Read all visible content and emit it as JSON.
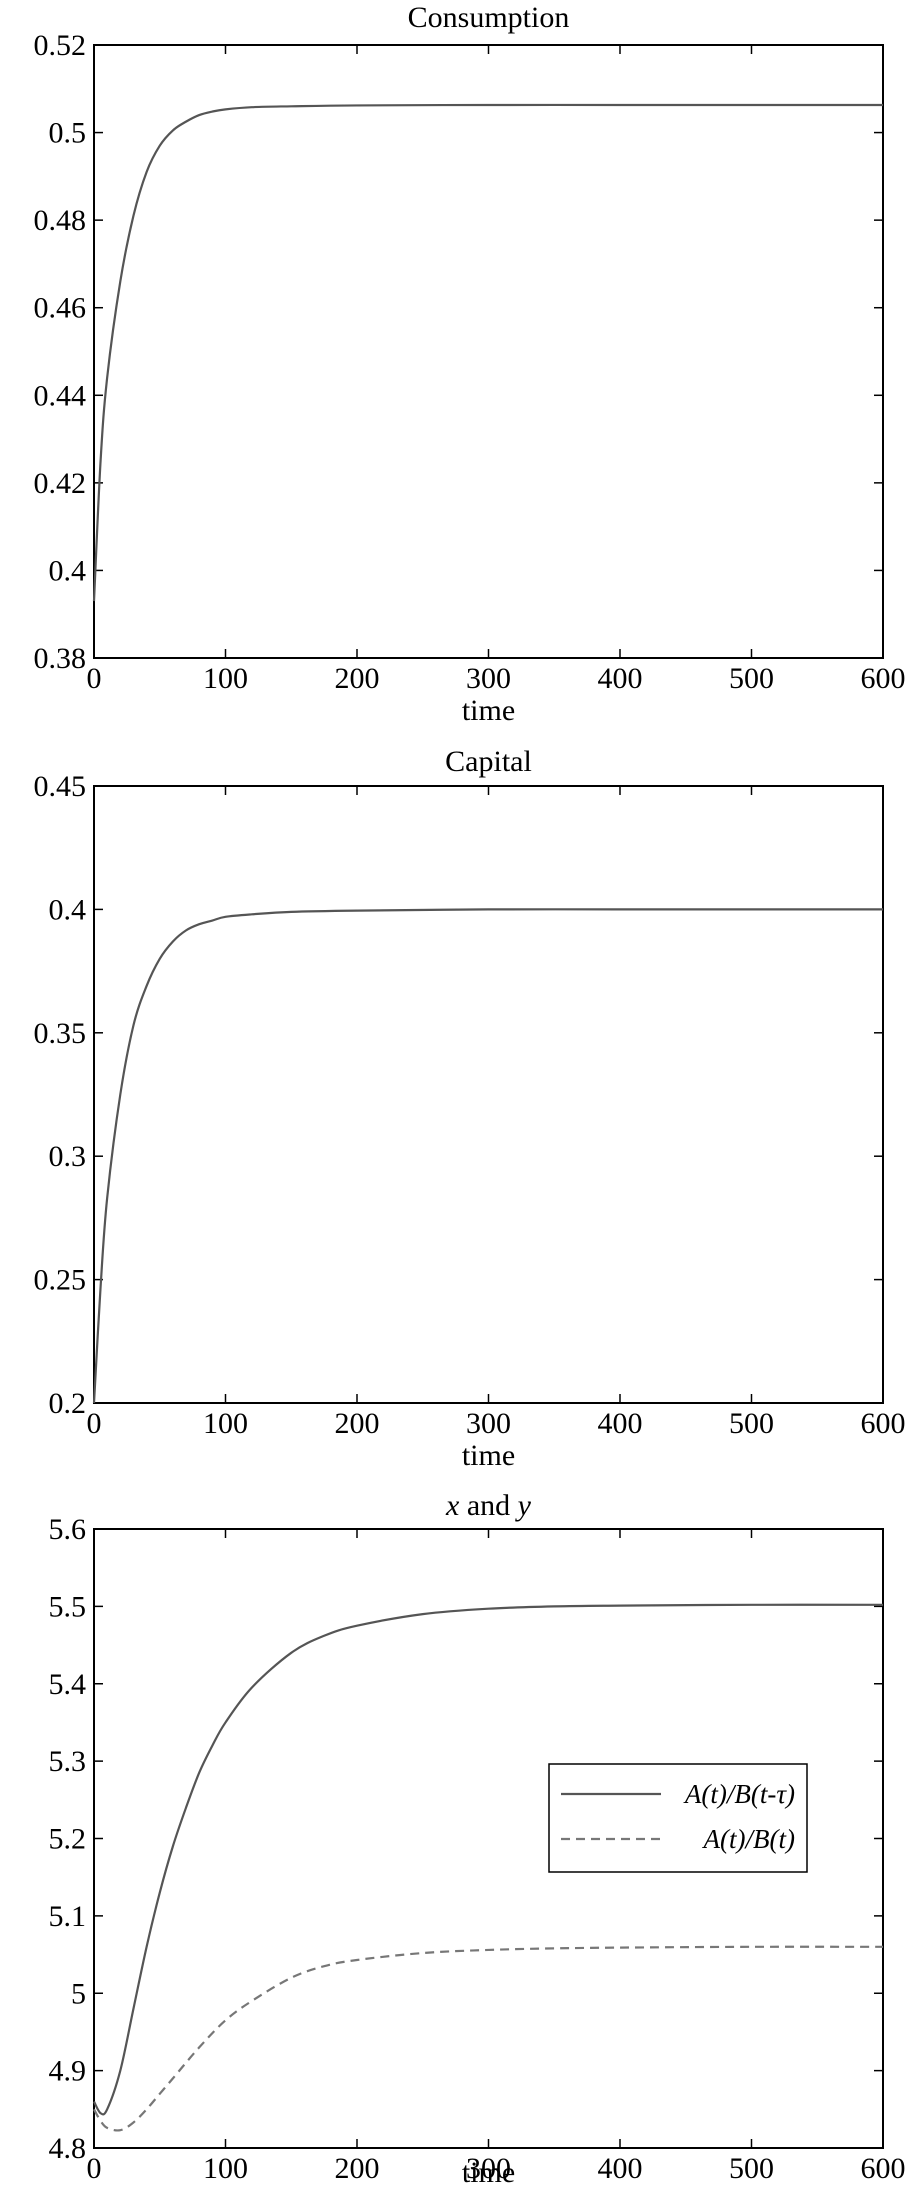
{
  "chart_data": [
    {
      "type": "line",
      "title": "Consumption",
      "xlabel": "time",
      "ylabel": "",
      "xlim": [
        0,
        600
      ],
      "ylim": [
        0.38,
        0.52
      ],
      "xticks": [
        "0",
        "100",
        "200",
        "300",
        "400",
        "500",
        "600"
      ],
      "yticks": [
        "0.38",
        "0.4",
        "0.42",
        "0.44",
        "0.46",
        "0.48",
        "0.5",
        "0.52"
      ],
      "grid": false,
      "legend": null,
      "series": [
        {
          "style": "solid",
          "color": "#555555",
          "x": [
            0,
            5,
            10,
            20,
            30,
            40,
            50,
            60,
            70,
            80,
            90,
            100,
            120,
            150,
            200,
            300,
            400,
            500,
            600
          ],
          "y": [
            0.393,
            0.425,
            0.444,
            0.466,
            0.481,
            0.491,
            0.497,
            0.5005,
            0.5025,
            0.504,
            0.5048,
            0.5053,
            0.5058,
            0.506,
            0.5062,
            0.5063,
            0.5063,
            0.5063,
            0.5063
          ]
        }
      ]
    },
    {
      "type": "line",
      "title": "Capital",
      "xlabel": "time",
      "ylabel": "",
      "xlim": [
        0,
        600
      ],
      "ylim": [
        0.2,
        0.45
      ],
      "xticks": [
        "0",
        "100",
        "200",
        "300",
        "400",
        "500",
        "600"
      ],
      "yticks": [
        "0.2",
        "0.25",
        "0.3",
        "0.35",
        "0.4",
        "0.45"
      ],
      "grid": false,
      "legend": null,
      "series": [
        {
          "style": "solid",
          "color": "#555555",
          "x": [
            0,
            5,
            10,
            20,
            30,
            40,
            50,
            60,
            70,
            80,
            90,
            100,
            120,
            150,
            200,
            300,
            400,
            500,
            600
          ],
          "y": [
            0.2,
            0.247,
            0.283,
            0.325,
            0.353,
            0.369,
            0.38,
            0.387,
            0.3915,
            0.394,
            0.3955,
            0.397,
            0.398,
            0.399,
            0.3995,
            0.4,
            0.4,
            0.4,
            0.4
          ]
        }
      ]
    },
    {
      "type": "line",
      "title": "x and y",
      "title_parts": [
        "x",
        " and ",
        "y"
      ],
      "xlabel": "time",
      "ylabel": "",
      "xlim": [
        0,
        600
      ],
      "ylim": [
        4.8,
        5.6
      ],
      "xticks": [
        "0",
        "100",
        "200",
        "300",
        "400",
        "500",
        "600"
      ],
      "yticks": [
        "4.8",
        "4.9",
        "5",
        "5.1",
        "5.2",
        "5.3",
        "5.4",
        "5.5",
        "5.6"
      ],
      "grid": false,
      "legend": "top-right",
      "series": [
        {
          "name": "A(t)/B(t-τ)",
          "style": "solid",
          "color": "#555555",
          "x": [
            0,
            5,
            10,
            20,
            30,
            40,
            50,
            60,
            70,
            80,
            90,
            100,
            120,
            150,
            175,
            200,
            250,
            300,
            350,
            400,
            500,
            600
          ],
          "y": [
            4.86,
            4.845,
            4.85,
            4.9,
            4.98,
            5.06,
            5.13,
            5.19,
            5.24,
            5.285,
            5.32,
            5.35,
            5.395,
            5.44,
            5.462,
            5.475,
            5.49,
            5.497,
            5.5,
            5.501,
            5.502,
            5.502
          ]
        },
        {
          "name": "A(t)/B(t)",
          "style": "dashed",
          "color": "#777777",
          "x": [
            0,
            5,
            10,
            20,
            30,
            40,
            50,
            60,
            80,
            100,
            120,
            150,
            175,
            200,
            250,
            300,
            350,
            400,
            500,
            600
          ],
          "y": [
            4.85,
            4.835,
            4.826,
            4.823,
            4.833,
            4.85,
            4.87,
            4.89,
            4.93,
            4.965,
            4.99,
            5.02,
            5.035,
            5.043,
            5.052,
            5.056,
            5.058,
            5.059,
            5.06,
            5.06
          ]
        }
      ]
    }
  ]
}
